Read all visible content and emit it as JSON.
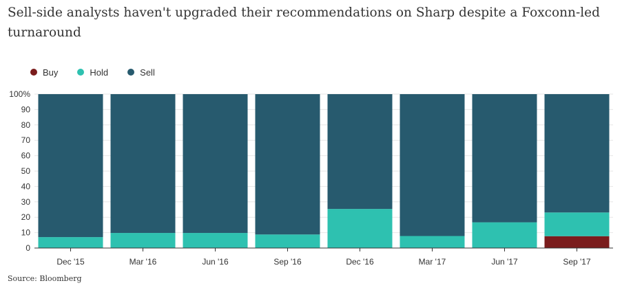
{
  "chart_data": {
    "type": "bar",
    "stacked": true,
    "title": "Sell-side analysts haven't upgraded their recommendations on Sharp despite a Foxconn-led turnaround",
    "categories": [
      "Dec '15",
      "Mar '16",
      "Jun '16",
      "Sep '16",
      "Dec '16",
      "Mar '17",
      "Jun '17",
      "Sep '17"
    ],
    "series": [
      {
        "name": "Buy",
        "color": "#7a1c1c",
        "values": [
          0,
          0,
          0,
          0,
          0,
          0,
          0,
          7.7
        ]
      },
      {
        "name": "Hold",
        "color": "#2ec1b0",
        "values": [
          7.1,
          9.8,
          9.8,
          8.8,
          25.4,
          7.8,
          16.7,
          15.4
        ]
      },
      {
        "name": "Sell",
        "color": "#275a6e",
        "values": [
          92.9,
          90.2,
          90.2,
          91.2,
          74.6,
          92.2,
          83.3,
          76.9
        ]
      }
    ],
    "y_ticks": [
      "0",
      "10",
      "20",
      "30",
      "40",
      "50",
      "60",
      "70",
      "80",
      "90",
      "100%"
    ],
    "ylim": [
      0,
      100
    ],
    "xlabel": "",
    "ylabel": "",
    "legend_position": "top-left",
    "grid": true
  },
  "source": "Source: Bloomberg"
}
